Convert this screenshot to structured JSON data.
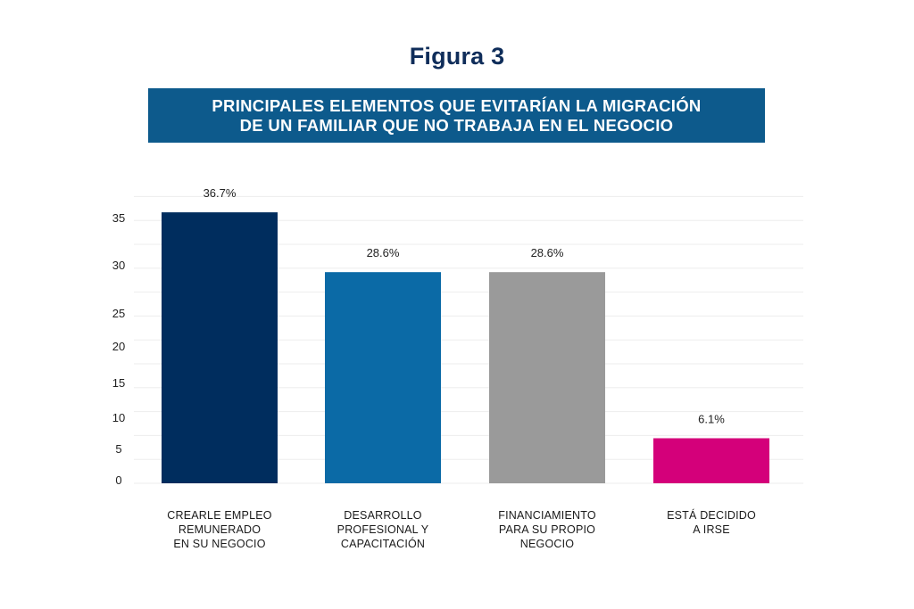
{
  "figure_title": "Figura 3",
  "subtitle_lines": [
    "PRINCIPALES ELEMENTOS QUE EVITARÍAN LA MIGRACIÓN",
    "DE UN FAMILIAR QUE NO TRABAJA EN EL NEGOCIO"
  ],
  "colors": {
    "title": "#0f2d5a",
    "subtitle_bg": "#0d5a8c",
    "gridline": "#ededed"
  },
  "chart_data": {
    "type": "bar",
    "title": "PRINCIPALES ELEMENTOS QUE EVITARÍAN LA MIGRACIÓN DE UN FAMILIAR QUE NO TRABAJA EN EL NEGOCIO",
    "categories": [
      [
        "CREARLE EMPLEO",
        "REMUNERADO",
        "EN SU NEGOCIO"
      ],
      [
        "DESARROLLO",
        "PROFESIONAL Y",
        "CAPACITACIÓN"
      ],
      [
        "FINANCIAMIENTO",
        "PARA SU PROPIO",
        "NEGOCIO"
      ],
      [
        "ESTÁ DECIDIDO",
        "A IRSE"
      ]
    ],
    "values": [
      36.7,
      28.6,
      28.6,
      6.1
    ],
    "data_labels": [
      "36.7%",
      "28.6%",
      "28.6%",
      "6.1%"
    ],
    "bar_colors": [
      "#002d5e",
      "#0b6aa6",
      "#9a9a9a",
      "#d4007a"
    ],
    "yticks": [
      0,
      5,
      10,
      15,
      20,
      25,
      30,
      35
    ],
    "ylim": [
      0,
      38
    ],
    "xlabel": "",
    "ylabel": "",
    "grid": true,
    "legend": "none"
  }
}
